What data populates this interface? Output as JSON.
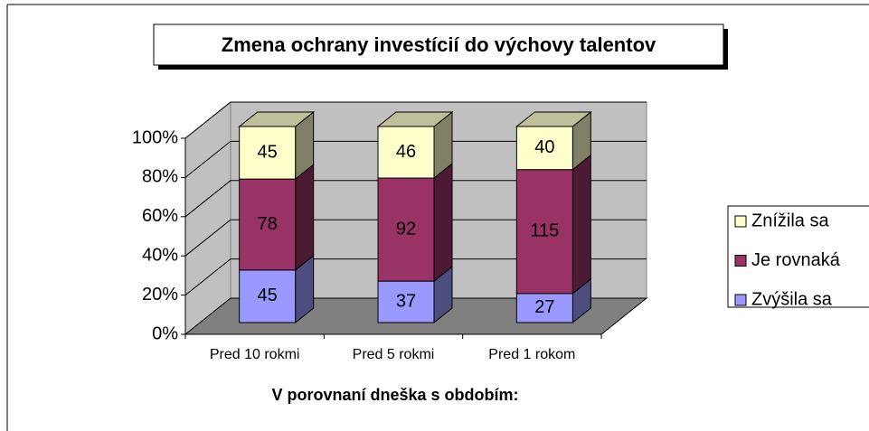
{
  "chart_data": {
    "type": "bar",
    "stacking": "percent",
    "title": "Zmena ochrany investícií do výchovy talentov",
    "x_label": "V porovnaní dneška s obdobím:",
    "categories": [
      "Pred 10 rokmi",
      "Pred 5 rokmi",
      "Pred 1 rokom"
    ],
    "series": [
      {
        "name": "Zvýšila sa",
        "color": "#9999ff",
        "values": [
          45,
          37,
          27
        ]
      },
      {
        "name": "Je rovnaká",
        "color": "#993366",
        "values": [
          78,
          92,
          115
        ]
      },
      {
        "name": "Znížila sa",
        "color": "#ffffcc",
        "values": [
          45,
          46,
          40
        ]
      }
    ],
    "ylim": [
      0,
      100
    ],
    "yticks": [
      {
        "value": 0,
        "label": "0%"
      },
      {
        "value": 20,
        "label": "20%"
      },
      {
        "value": 40,
        "label": "40%"
      },
      {
        "value": 60,
        "label": "60%"
      },
      {
        "value": 80,
        "label": "80%"
      },
      {
        "value": 100,
        "label": "100%"
      }
    ],
    "grid": true,
    "legend": "right"
  }
}
